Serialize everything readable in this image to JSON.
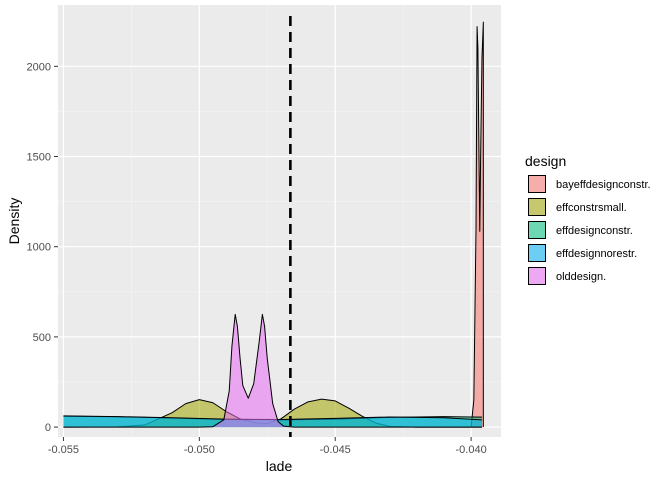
{
  "chart_data": {
    "type": "area",
    "title": "",
    "xlabel": "lade",
    "ylabel": "Density",
    "xlim": [
      -0.0552,
      -0.0389
    ],
    "ylim": [
      -55,
      2340
    ],
    "x_ticks": [
      -0.055,
      -0.05,
      -0.045,
      -0.04
    ],
    "x_tick_labels": [
      "-0.055",
      "-0.050",
      "-0.045",
      "-0.040"
    ],
    "y_ticks": [
      0,
      500,
      1000,
      1500,
      2000
    ],
    "y_tick_labels": [
      "0",
      "500",
      "1000",
      "1500",
      "2000"
    ],
    "grid": true,
    "legend_position": "right",
    "legend_title": "design",
    "vline": {
      "x": -0.04665,
      "style": "dashed",
      "color": "#000000"
    },
    "series": [
      {
        "name": "bayeffdesignconstr.",
        "color": "#F8766D",
        "points": [
          [
            -0.04,
            0
          ],
          [
            -0.0399,
            150
          ],
          [
            -0.03982,
            1100
          ],
          [
            -0.03978,
            2220
          ],
          [
            -0.03975,
            2100
          ],
          [
            -0.03971,
            1500
          ],
          [
            -0.03968,
            1085
          ],
          [
            -0.03965,
            1500
          ],
          [
            -0.0396,
            2050
          ],
          [
            -0.03955,
            2245
          ],
          [
            -0.03955,
            0
          ]
        ]
      },
      {
        "name": "effconstrsmall.",
        "color": "#A3A500",
        "points": [
          [
            -0.055,
            0
          ],
          [
            -0.053,
            1
          ],
          [
            -0.052,
            12
          ],
          [
            -0.051,
            80
          ],
          [
            -0.0505,
            130
          ],
          [
            -0.05,
            152
          ],
          [
            -0.0495,
            135
          ],
          [
            -0.049,
            85
          ],
          [
            -0.0485,
            45
          ],
          [
            -0.048,
            25
          ],
          [
            -0.0475,
            20
          ],
          [
            -0.047,
            45
          ],
          [
            -0.0465,
            100
          ],
          [
            -0.046,
            140
          ],
          [
            -0.0455,
            155
          ],
          [
            -0.045,
            145
          ],
          [
            -0.0445,
            105
          ],
          [
            -0.044,
            60
          ],
          [
            -0.0435,
            22
          ],
          [
            -0.043,
            4
          ],
          [
            -0.042,
            0
          ],
          [
            -0.0396,
            0
          ]
        ]
      },
      {
        "name": "effdesignconstr.",
        "color": "#00BF7D",
        "points": [
          [
            -0.055,
            60
          ],
          [
            -0.053,
            57
          ],
          [
            -0.051,
            50
          ],
          [
            -0.049,
            42
          ],
          [
            -0.047,
            40
          ],
          [
            -0.045,
            44
          ],
          [
            -0.043,
            54
          ],
          [
            -0.041,
            58
          ],
          [
            -0.0396,
            55
          ]
        ]
      },
      {
        "name": "effdesignnorestr.",
        "color": "#00B0F6",
        "points": [
          [
            -0.055,
            62
          ],
          [
            -0.053,
            58
          ],
          [
            -0.051,
            52
          ],
          [
            -0.049,
            44
          ],
          [
            -0.047,
            42
          ],
          [
            -0.045,
            48
          ],
          [
            -0.043,
            56
          ],
          [
            -0.041,
            52
          ],
          [
            -0.0396,
            40
          ]
        ]
      },
      {
        "name": "olddesign.",
        "color": "#E76BF3",
        "points": [
          [
            -0.055,
            0
          ],
          [
            -0.05,
            0
          ],
          [
            -0.0495,
            2
          ],
          [
            -0.0491,
            40
          ],
          [
            -0.0489,
            200
          ],
          [
            -0.0488,
            450
          ],
          [
            -0.04868,
            625
          ],
          [
            -0.0486,
            560
          ],
          [
            -0.0485,
            380
          ],
          [
            -0.0484,
            230
          ],
          [
            -0.0482,
            160
          ],
          [
            -0.048,
            240
          ],
          [
            -0.0478,
            470
          ],
          [
            -0.04768,
            625
          ],
          [
            -0.0476,
            560
          ],
          [
            -0.0475,
            380
          ],
          [
            -0.0473,
            130
          ],
          [
            -0.0471,
            30
          ],
          [
            -0.0469,
            5
          ],
          [
            -0.0465,
            0
          ],
          [
            -0.0396,
            0
          ]
        ]
      }
    ]
  }
}
